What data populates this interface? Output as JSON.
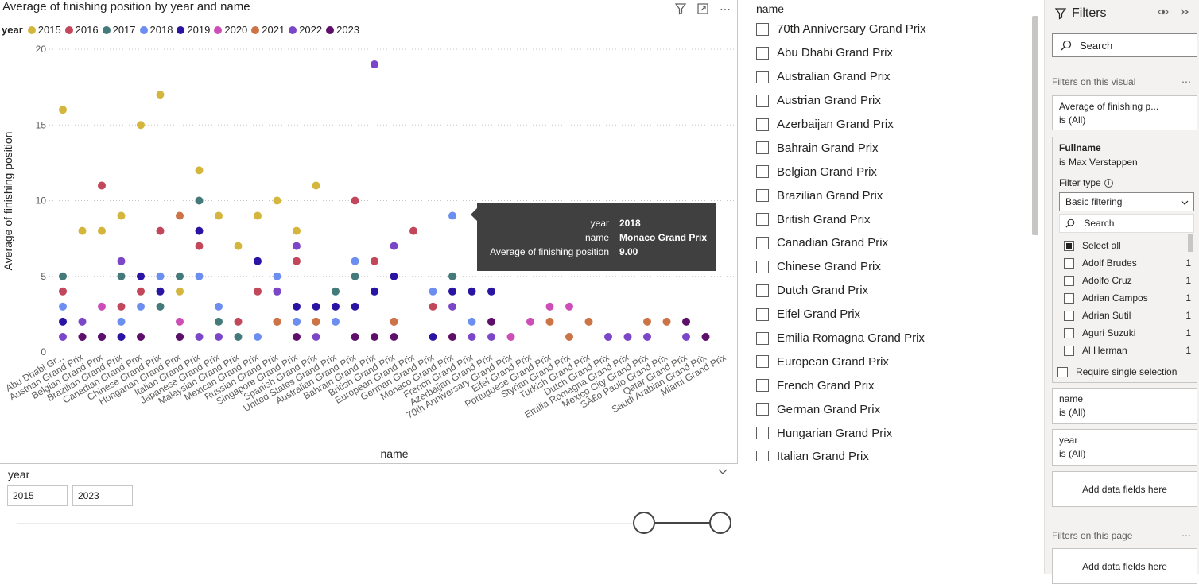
{
  "visual": {
    "title": "Average of finishing position by year and name",
    "legend": {
      "title": "year",
      "items": [
        {
          "label": "2015",
          "color": "#D4B63C"
        },
        {
          "label": "2016",
          "color": "#C2475B"
        },
        {
          "label": "2017",
          "color": "#457A7A"
        },
        {
          "label": "2018",
          "color": "#6D8EF1"
        },
        {
          "label": "2019",
          "color": "#2A14A3"
        },
        {
          "label": "2020",
          "color": "#CE4EB8"
        },
        {
          "label": "2021",
          "color": "#CC7446"
        },
        {
          "label": "2022",
          "color": "#7B46C8"
        },
        {
          "label": "2023",
          "color": "#5E0F6A"
        }
      ]
    },
    "tooltip": {
      "rows": [
        {
          "key": "year",
          "value": "2018"
        },
        {
          "key": "name",
          "value": "Monaco Grand Prix"
        },
        {
          "key": "Average of finishing position",
          "value": "9.00"
        }
      ]
    }
  },
  "chart_data": {
    "type": "scatter",
    "xlabel": "name",
    "ylabel": "Average of finishing position",
    "ylim": [
      0,
      20
    ],
    "yticks": [
      0,
      5,
      10,
      15,
      20
    ],
    "categories": [
      "Abu Dhabi Gr...",
      "Austrian Grand Prix",
      "Belgian Grand Prix",
      "Brazilian Grand Prix",
      "Canadian Grand Prix",
      "Chinese Grand Prix",
      "Hungarian Grand Prix",
      "Italian Grand Prix",
      "Japanese Grand Prix",
      "Malaysian Grand Prix",
      "Mexican Grand Prix",
      "Russian Grand Prix",
      "Singapore Grand Prix",
      "Spanish Grand Prix",
      "United States Grand Prix",
      "Australian Grand Prix",
      "Bahrain Grand Prix",
      "British Grand Prix",
      "European Grand Prix",
      "German Grand Prix",
      "Monaco Grand Prix",
      "French Grand Prix",
      "Azerbaijan Grand Prix",
      "70th Anniversary Grand Prix",
      "Eifel Grand Prix",
      "Portuguese Grand Prix",
      "Styrian Grand Prix",
      "Turkish Grand Prix",
      "Dutch Grand Prix",
      "Emilia Romagna Grand Prix",
      "Mexico City Grand Prix",
      "SÃ£o Paulo Grand Prix",
      "Qatar Grand Prix",
      "Saudi Arabian Grand Prix",
      "Miami Grand Prix"
    ],
    "grid": true,
    "legend_position": "top-left",
    "series": [
      {
        "name": "2015",
        "points": [
          [
            0,
            16
          ],
          [
            1,
            8
          ],
          [
            2,
            8
          ],
          [
            3,
            9
          ],
          [
            4,
            15
          ],
          [
            5,
            17
          ],
          [
            6,
            4
          ],
          [
            7,
            12
          ],
          [
            8,
            9
          ],
          [
            9,
            7
          ],
          [
            10,
            9
          ],
          [
            11,
            10
          ],
          [
            12,
            8
          ],
          [
            13,
            11
          ]
        ]
      },
      {
        "name": "2016",
        "points": [
          [
            0,
            4
          ],
          [
            2,
            11
          ],
          [
            3,
            3
          ],
          [
            4,
            4
          ],
          [
            5,
            8
          ],
          [
            7,
            7
          ],
          [
            9,
            2
          ],
          [
            10,
            4
          ],
          [
            11,
            2
          ],
          [
            12,
            6
          ],
          [
            13,
            2
          ],
          [
            15,
            10
          ],
          [
            16,
            6
          ],
          [
            18,
            8
          ],
          [
            19,
            3
          ]
        ]
      },
      {
        "name": "2017",
        "points": [
          [
            0,
            5
          ],
          [
            3,
            5
          ],
          [
            5,
            3
          ],
          [
            6,
            5
          ],
          [
            7,
            10
          ],
          [
            8,
            2
          ],
          [
            9,
            1
          ],
          [
            12,
            2
          ],
          [
            14,
            4
          ],
          [
            15,
            5
          ],
          [
            16,
            4
          ],
          [
            20,
            5
          ]
        ]
      },
      {
        "name": "2018",
        "points": [
          [
            0,
            3
          ],
          [
            3,
            2
          ],
          [
            4,
            3
          ],
          [
            5,
            5
          ],
          [
            7,
            5
          ],
          [
            8,
            3
          ],
          [
            10,
            1
          ],
          [
            11,
            5
          ],
          [
            12,
            2
          ],
          [
            14,
            2
          ],
          [
            15,
            6
          ],
          [
            16,
            4
          ],
          [
            19,
            4
          ],
          [
            20,
            9
          ],
          [
            21,
            2
          ]
        ]
      },
      {
        "name": "2019",
        "points": [
          [
            0,
            2
          ],
          [
            1,
            1
          ],
          [
            2,
            1
          ],
          [
            3,
            1
          ],
          [
            4,
            5
          ],
          [
            5,
            4
          ],
          [
            6,
            1
          ],
          [
            7,
            8
          ],
          [
            10,
            6
          ],
          [
            11,
            4
          ],
          [
            12,
            3
          ],
          [
            13,
            3
          ],
          [
            14,
            3
          ],
          [
            15,
            3
          ],
          [
            16,
            4
          ],
          [
            17,
            5
          ],
          [
            19,
            1
          ],
          [
            20,
            4
          ],
          [
            21,
            4
          ],
          [
            22,
            4
          ]
        ]
      },
      {
        "name": "2020",
        "points": [
          [
            2,
            3
          ],
          [
            6,
            2
          ],
          [
            17,
            2
          ],
          [
            23,
            1
          ],
          [
            24,
            2
          ],
          [
            25,
            3
          ],
          [
            26,
            3
          ]
        ]
      },
      {
        "name": "2021",
        "points": [
          [
            6,
            9
          ],
          [
            11,
            2
          ],
          [
            13,
            2
          ],
          [
            17,
            2
          ],
          [
            20,
            1
          ],
          [
            25,
            2
          ],
          [
            26,
            1
          ],
          [
            27,
            2
          ],
          [
            30,
            2
          ],
          [
            31,
            2
          ]
        ]
      },
      {
        "name": "2022",
        "points": [
          [
            0,
            1
          ],
          [
            1,
            2
          ],
          [
            3,
            6
          ],
          [
            7,
            1
          ],
          [
            8,
            1
          ],
          [
            11,
            4
          ],
          [
            12,
            7
          ],
          [
            13,
            1
          ],
          [
            15,
            1
          ],
          [
            16,
            19
          ],
          [
            17,
            7
          ],
          [
            20,
            3
          ],
          [
            21,
            1
          ],
          [
            22,
            1
          ],
          [
            28,
            1
          ],
          [
            29,
            1
          ],
          [
            30,
            1
          ],
          [
            32,
            1
          ]
        ]
      },
      {
        "name": "2023",
        "points": [
          [
            1,
            1
          ],
          [
            2,
            1
          ],
          [
            4,
            1
          ],
          [
            6,
            1
          ],
          [
            12,
            1
          ],
          [
            15,
            1
          ],
          [
            16,
            1
          ],
          [
            17,
            1
          ],
          [
            20,
            1
          ],
          [
            22,
            2
          ],
          [
            32,
            2
          ],
          [
            33,
            1
          ]
        ]
      }
    ]
  },
  "year_slicer": {
    "label": "year",
    "from": "2015",
    "to": "2023"
  },
  "name_list": {
    "title": "name",
    "items": [
      "70th Anniversary Grand Prix",
      "Abu Dhabi Grand Prix",
      "Australian Grand Prix",
      "Austrian Grand Prix",
      "Azerbaijan Grand Prix",
      "Bahrain Grand Prix",
      "Belgian Grand Prix",
      "Brazilian Grand Prix",
      "British Grand Prix",
      "Canadian Grand Prix",
      "Chinese Grand Prix",
      "Dutch Grand Prix",
      "Eifel Grand Prix",
      "Emilia Romagna Grand Prix",
      "European Grand Prix",
      "French Grand Prix",
      "German Grand Prix",
      "Hungarian Grand Prix",
      "Italian Grand Prix"
    ]
  },
  "filters": {
    "title": "Filters",
    "search_placeholder": "Search",
    "on_visual_label": "Filters on this visual",
    "avg_card": {
      "title": "Average of finishing p...",
      "state": "is (All)"
    },
    "fullname_card": {
      "title": "Fullname",
      "state": "is Max Verstappen",
      "filter_type_label": "Filter type",
      "filter_type_value": "Basic filtering",
      "search_placeholder": "Search",
      "select_all": "Select all",
      "rows": [
        {
          "name": "Adolf Brudes",
          "count": "1"
        },
        {
          "name": "Adolfo Cruz",
          "count": "1"
        },
        {
          "name": "Adrian Campos",
          "count": "1"
        },
        {
          "name": "Adrian Sutil",
          "count": "1"
        },
        {
          "name": "Aguri Suzuki",
          "count": "1"
        },
        {
          "name": "Al Herman",
          "count": "1"
        }
      ],
      "require_single": "Require single selection"
    },
    "name_card": {
      "title": "name",
      "state": "is (All)"
    },
    "year_card": {
      "title": "year",
      "state": "is (All)"
    },
    "add_fields": "Add data fields here",
    "on_page_label": "Filters on this page",
    "add_fields_page": "Add data fields here"
  }
}
